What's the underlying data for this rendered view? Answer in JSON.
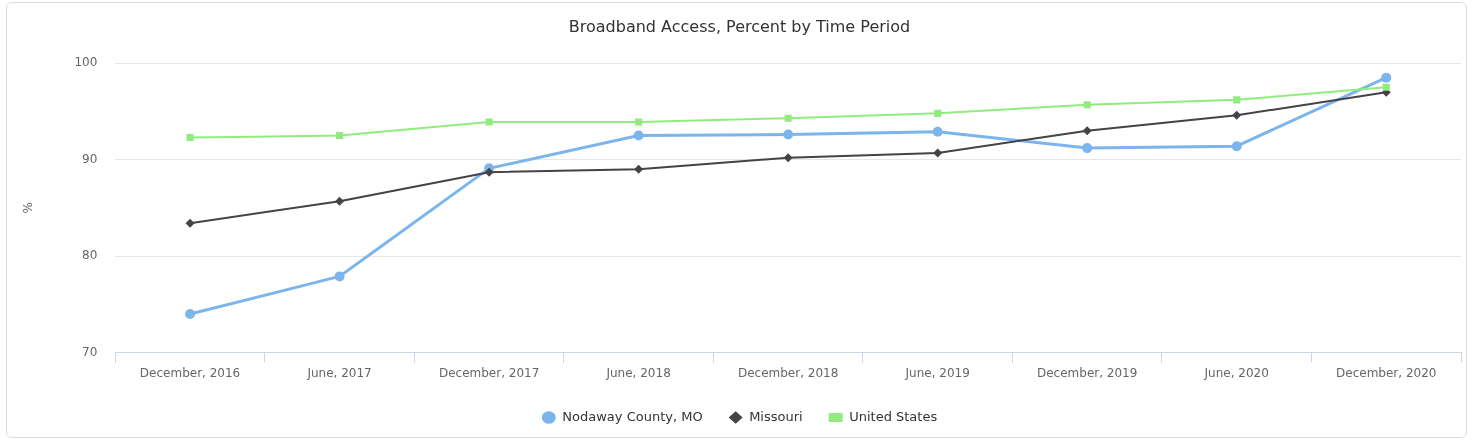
{
  "chart_data": {
    "type": "line",
    "title": "Broadband Access, Percent by Time Period",
    "ylabel": "%",
    "categories": [
      "December, 2016",
      "June, 2017",
      "December, 2017",
      "June, 2018",
      "December, 2018",
      "June, 2019",
      "December, 2019",
      "June, 2020",
      "December, 2020"
    ],
    "series": [
      {
        "name": "Nodaway County, MO",
        "color": "#7cb5ec",
        "marker": "circle",
        "values": [
          74.0,
          77.9,
          89.1,
          92.5,
          92.6,
          92.9,
          91.2,
          91.4,
          98.5
        ]
      },
      {
        "name": "Missouri",
        "color": "#434348",
        "marker": "diamond",
        "values": [
          83.4,
          85.7,
          88.7,
          89.0,
          90.2,
          90.7,
          93.0,
          94.6,
          97.0
        ]
      },
      {
        "name": "United States",
        "color": "#90ed7d",
        "marker": "square",
        "values": [
          92.3,
          92.5,
          93.9,
          93.9,
          94.3,
          94.8,
          95.7,
          96.2,
          97.5
        ]
      }
    ],
    "ylim": [
      70,
      100
    ],
    "yticks": [
      70,
      80,
      90,
      100
    ],
    "grid": "y",
    "legend": "bottom",
    "line_style": "solid"
  }
}
